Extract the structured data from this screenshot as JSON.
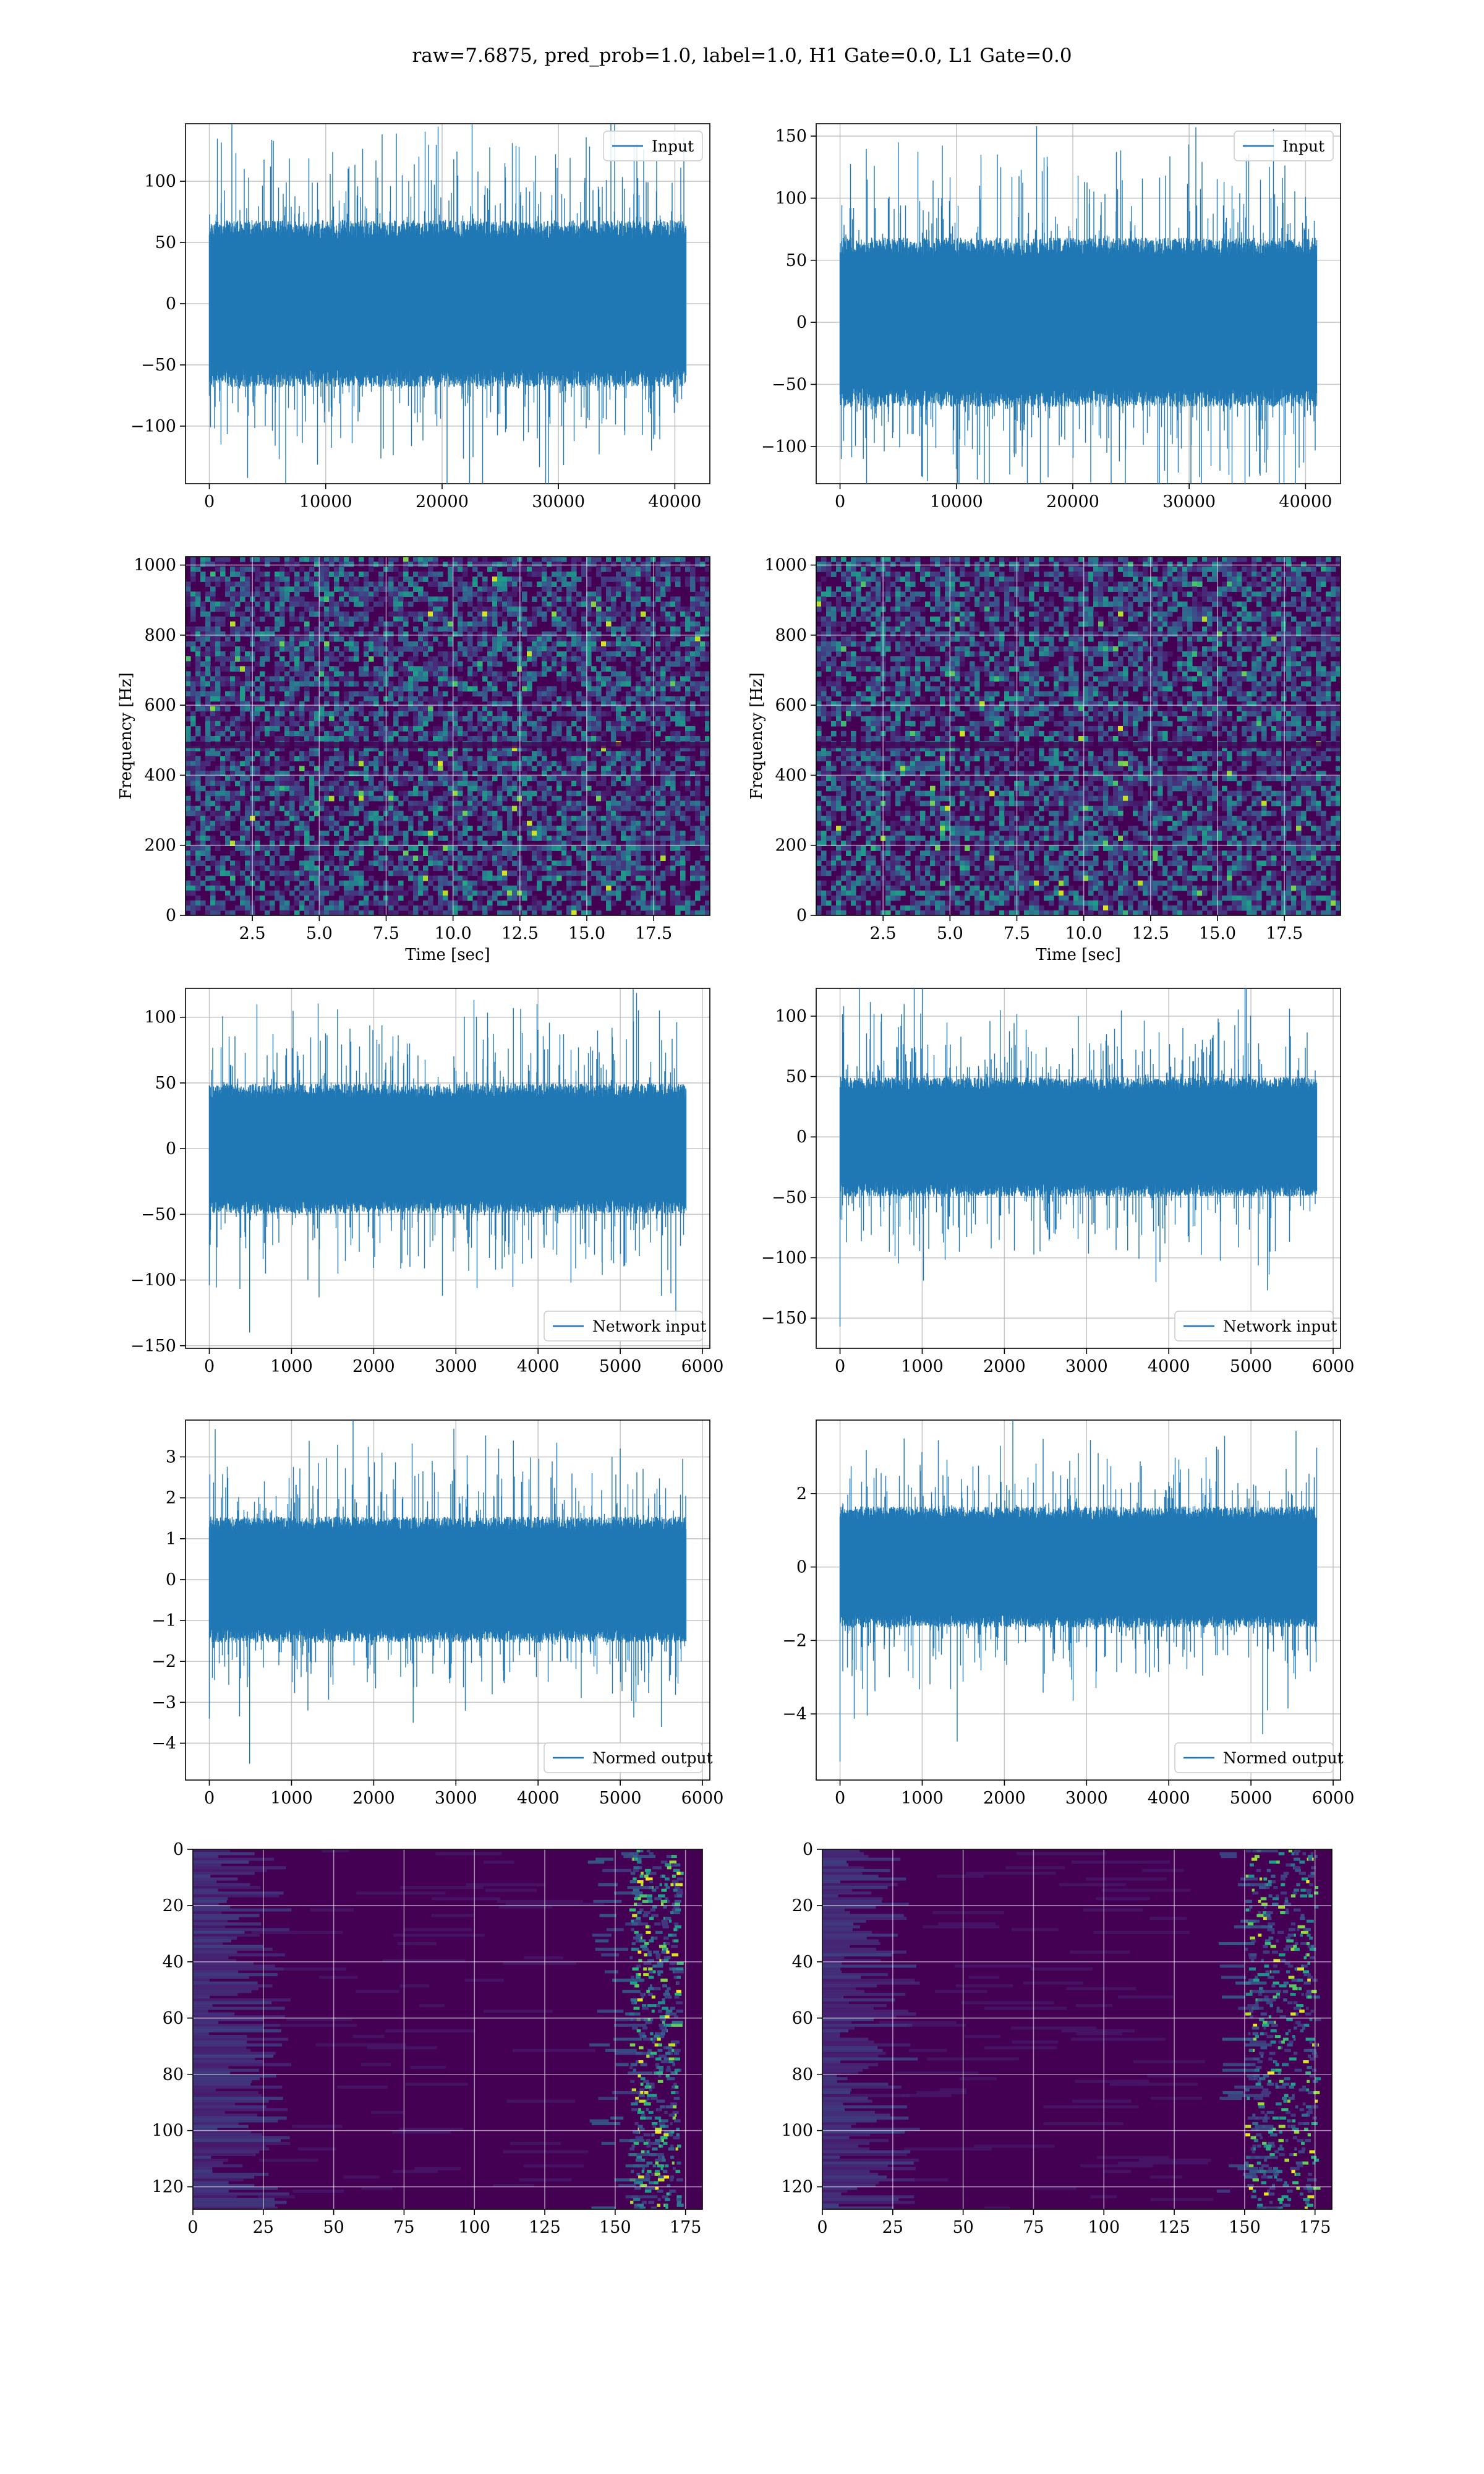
{
  "figure": {
    "title": "raw=7.6875, pred_prob=1.0, label=1.0, H1 Gate=0.0, L1 Gate=0.0"
  },
  "colors": {
    "line": "#1f77b4",
    "grid": "#b0b0b0",
    "viridis_dark": "#440154",
    "viridis_mid": "#3b528b",
    "viridis_teal": "#21918c",
    "viridis_green": "#5ec962",
    "viridis_yellow": "#fde725"
  },
  "chart_data": [
    {
      "id": "input-h1",
      "type": "line",
      "legend": "Input",
      "legend_loc": "upper right",
      "xlim": [
        -2048,
        43008
      ],
      "ylim": [
        -147,
        147
      ],
      "xticks": [
        0,
        10000,
        20000,
        30000,
        40000
      ],
      "yticks": [
        -100,
        -50,
        0,
        50,
        100
      ],
      "series": {
        "n": 40960,
        "x_start": 0,
        "x_end": 40960,
        "env_low": -62,
        "env_high": 62,
        "spikes": [
          [
            3000,
            110
          ],
          [
            5500,
            133
          ],
          [
            6000,
            -127
          ],
          [
            12000,
            112
          ],
          [
            21000,
            118
          ],
          [
            31000,
            119
          ],
          [
            33500,
            -123
          ],
          [
            38000,
            -120
          ],
          [
            1000,
            -115
          ],
          [
            27000,
            -112
          ]
        ]
      }
    },
    {
      "id": "input-l1",
      "type": "line",
      "legend": "Input",
      "legend_loc": "upper right",
      "xlim": [
        -2048,
        43008
      ],
      "ylim": [
        -130,
        160
      ],
      "xticks": [
        0,
        10000,
        20000,
        30000,
        40000
      ],
      "yticks": [
        -100,
        -50,
        0,
        50,
        100,
        150
      ],
      "series": {
        "n": 40960,
        "x_start": 0,
        "x_end": 40960,
        "env_low": -62,
        "env_high": 62,
        "spikes": [
          [
            5000,
            145
          ],
          [
            7500,
            -128
          ],
          [
            12000,
            110
          ],
          [
            21000,
            113
          ],
          [
            24000,
            -112
          ],
          [
            33000,
            113
          ],
          [
            36500,
            -113
          ],
          [
            40000,
            101
          ],
          [
            2000,
            -110
          ]
        ]
      }
    },
    {
      "id": "spec-h1",
      "type": "heatmap",
      "xlabel": "Time [sec]",
      "ylabel": "Frequency [Hz]",
      "xlim": [
        0,
        19.6
      ],
      "ylim": [
        0,
        1024
      ],
      "xticks": [
        2.5,
        5.0,
        7.5,
        10.0,
        12.5,
        15.0,
        17.5
      ],
      "yticks": [
        0,
        200,
        400,
        600,
        800,
        1000
      ],
      "colormap": "viridis"
    },
    {
      "id": "spec-l1",
      "type": "heatmap",
      "xlabel": "Time [sec]",
      "ylabel": "Frequency [Hz]",
      "xlim": [
        0,
        19.6
      ],
      "ylim": [
        0,
        1024
      ],
      "xticks": [
        2.5,
        5.0,
        7.5,
        10.0,
        12.5,
        15.0,
        17.5
      ],
      "yticks": [
        0,
        200,
        400,
        600,
        800,
        1000
      ],
      "colormap": "viridis"
    },
    {
      "id": "net-h1",
      "type": "line",
      "legend": "Network input",
      "legend_loc": "lower right",
      "xlim": [
        -290,
        6090
      ],
      "ylim": [
        -152,
        122
      ],
      "xticks": [
        0,
        1000,
        2000,
        3000,
        4000,
        5000,
        6000
      ],
      "yticks": [
        -150,
        -100,
        -50,
        0,
        50,
        100
      ],
      "series": {
        "n": 5800,
        "x_start": 0,
        "x_end": 5800,
        "env_low": -45,
        "env_high": 45,
        "spikes": [
          [
            490,
            -140
          ],
          [
            0,
            -104
          ],
          [
            1560,
            106
          ],
          [
            1200,
            -100
          ],
          [
            3700,
            107
          ],
          [
            4400,
            -102
          ],
          [
            5500,
            -112
          ],
          [
            2100,
            94
          ],
          [
            4900,
            92
          ]
        ]
      }
    },
    {
      "id": "net-l1",
      "type": "line",
      "legend": "Network input",
      "legend_loc": "lower right",
      "xlim": [
        -290,
        6090
      ],
      "ylim": [
        -175,
        123
      ],
      "xticks": [
        0,
        1000,
        2000,
        3000,
        4000,
        5000,
        6000
      ],
      "yticks": [
        -150,
        -100,
        -50,
        0,
        50,
        100
      ],
      "series": {
        "n": 5800,
        "x_start": 0,
        "x_end": 5800,
        "env_low": -45,
        "env_high": 45,
        "spikes": [
          [
            0,
            -157
          ],
          [
            780,
            110
          ],
          [
            1950,
            105
          ],
          [
            5200,
            -127
          ],
          [
            2900,
            100
          ],
          [
            4600,
            98
          ],
          [
            600,
            -95
          ],
          [
            3500,
            -94
          ]
        ]
      }
    },
    {
      "id": "norm-h1",
      "type": "line",
      "legend": "Normed output",
      "legend_loc": "lower right",
      "xlim": [
        -290,
        6090
      ],
      "ylim": [
        -4.9,
        3.9
      ],
      "xticks": [
        0,
        1000,
        2000,
        3000,
        4000,
        5000,
        6000
      ],
      "yticks": [
        -4,
        -3,
        -2,
        -1,
        0,
        1,
        2,
        3
      ],
      "series": {
        "n": 5800,
        "x_start": 0,
        "x_end": 5800,
        "env_low": -1.4,
        "env_high": 1.4,
        "spikes": [
          [
            490,
            -4.5
          ],
          [
            0,
            -3.4
          ],
          [
            1560,
            3.3
          ],
          [
            3700,
            3.4
          ],
          [
            2480,
            -3.5
          ],
          [
            5500,
            -3.6
          ],
          [
            1200,
            -3.2
          ],
          [
            2100,
            3.1
          ],
          [
            4900,
            3.0
          ]
        ]
      }
    },
    {
      "id": "norm-l1",
      "type": "line",
      "legend": "Normed output",
      "legend_loc": "lower right",
      "xlim": [
        -290,
        6090
      ],
      "ylim": [
        -5.8,
        4.0
      ],
      "xticks": [
        0,
        1000,
        2000,
        3000,
        4000,
        5000,
        6000
      ],
      "yticks": [
        -4,
        -2,
        0,
        2
      ],
      "series": {
        "n": 5800,
        "x_start": 0,
        "x_end": 5800,
        "env_low": -1.5,
        "env_high": 1.5,
        "spikes": [
          [
            0,
            -5.3
          ],
          [
            780,
            3.5
          ],
          [
            5200,
            -3.9
          ],
          [
            1950,
            3.3
          ],
          [
            2900,
            3.1
          ],
          [
            600,
            -3.0
          ],
          [
            4600,
            3.2
          ],
          [
            3600,
            -2.9
          ]
        ]
      }
    },
    {
      "id": "qtrans-h1",
      "type": "heatmap",
      "xlim": [
        0,
        181
      ],
      "ylim": [
        128,
        0
      ],
      "xticks": [
        0,
        25,
        50,
        75,
        100,
        125,
        150,
        175
      ],
      "yticks": [
        0,
        20,
        40,
        60,
        80,
        100,
        120
      ],
      "colormap": "viridis",
      "bright_band": [
        155,
        172
      ]
    },
    {
      "id": "qtrans-l1",
      "type": "heatmap",
      "xlim": [
        0,
        181
      ],
      "ylim": [
        128,
        0
      ],
      "xticks": [
        0,
        25,
        50,
        75,
        100,
        125,
        150,
        175
      ],
      "yticks": [
        0,
        20,
        40,
        60,
        80,
        100,
        120
      ],
      "colormap": "viridis",
      "bright_band": [
        150,
        175
      ]
    }
  ]
}
